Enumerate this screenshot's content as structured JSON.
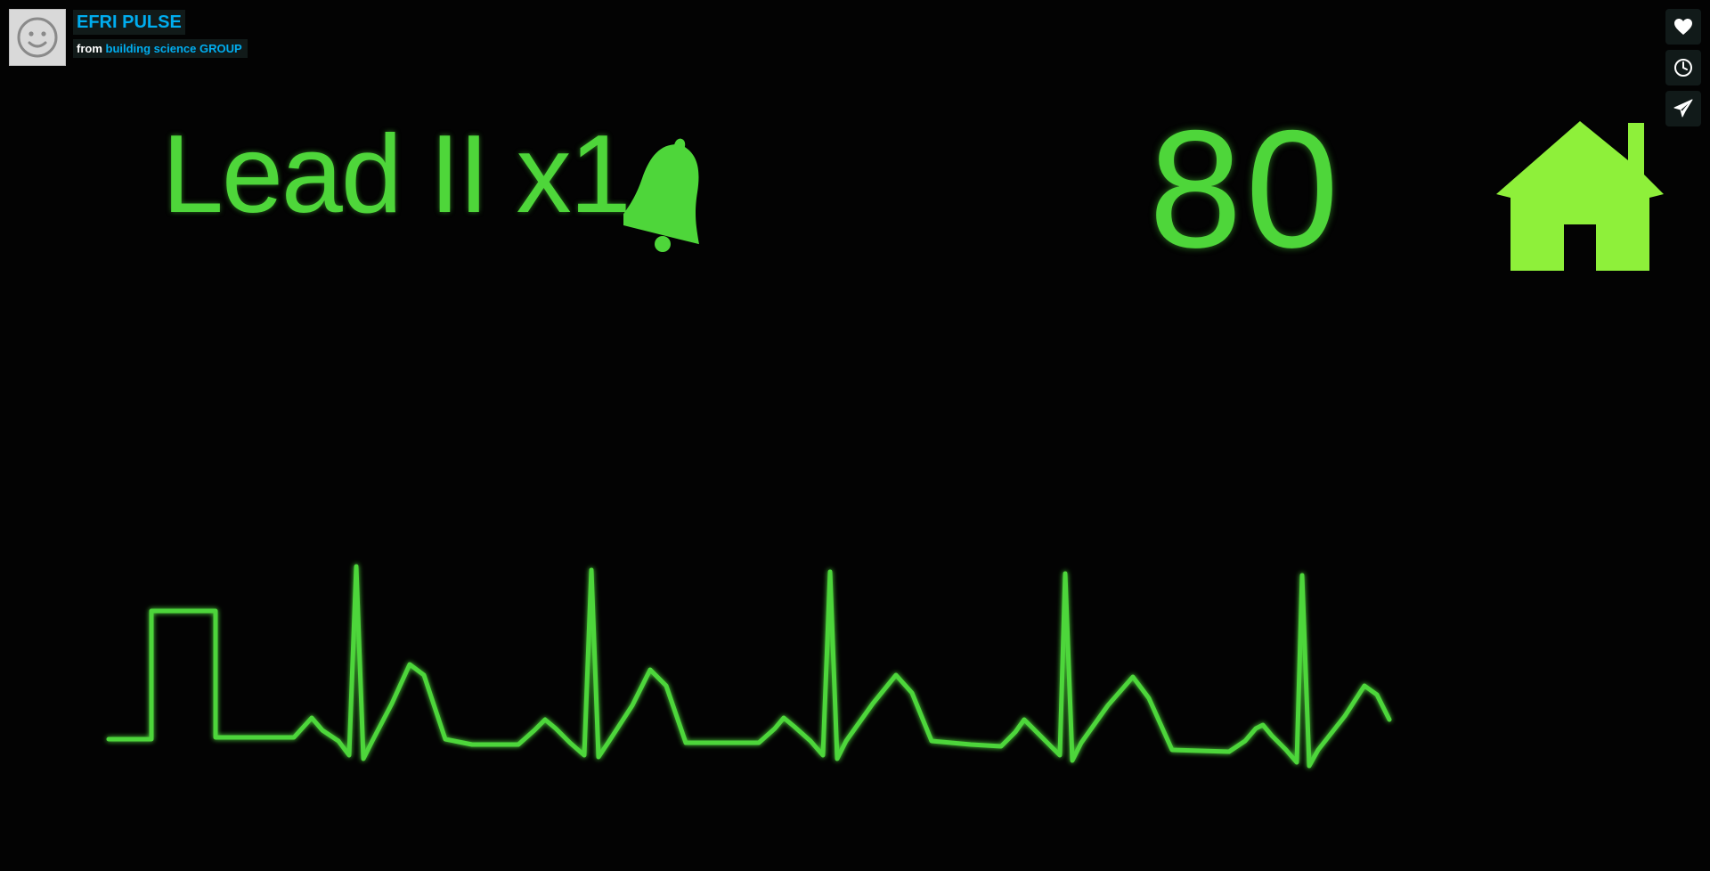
{
  "header": {
    "title": "EFRI PULSE",
    "from_label": "from",
    "owner": "building science GROUP"
  },
  "actions": [
    {
      "icon": "heart-icon"
    },
    {
      "icon": "clock-icon"
    },
    {
      "icon": "send-icon"
    }
  ],
  "monitor": {
    "lead_label": "Lead II x1",
    "heart_rate": "80",
    "alarm_icon": "bell-icon",
    "home_icon": "house-icon",
    "trace_color": "#4ed63a",
    "home_color": "#8ef03a"
  },
  "colors": {
    "accent": "#00adef",
    "overlay_bg": "#172322",
    "background": "#030303"
  }
}
